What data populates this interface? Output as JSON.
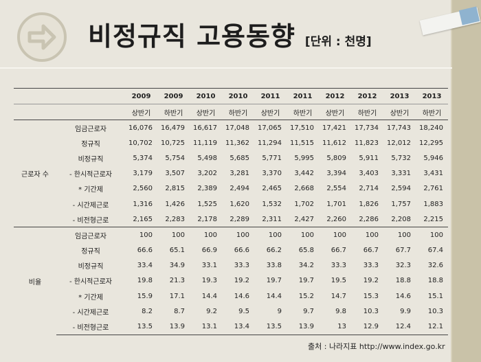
{
  "title": "비정규직 고용동향",
  "unit": "[단위 : 천명]",
  "header": {
    "years": [
      "2009",
      "2009",
      "2010",
      "2010",
      "2011",
      "2011",
      "2012",
      "2012",
      "2013",
      "2013"
    ],
    "halves": [
      "상반기",
      "하반기",
      "상반기",
      "하반기",
      "상반기",
      "하반기",
      "상반기",
      "하반기",
      "상반기",
      "하반기"
    ]
  },
  "groups": [
    {
      "label": "근로자 수",
      "rows": [
        {
          "item": "임금근로자",
          "values": [
            "16,076",
            "16,479",
            "16,617",
            "17,048",
            "17,065",
            "17,510",
            "17,421",
            "17,734",
            "17,743",
            "18,240"
          ]
        },
        {
          "item": "정규직",
          "values": [
            "10,702",
            "10,725",
            "11,119",
            "11,362",
            "11,294",
            "11,515",
            "11,612",
            "11,823",
            "12,012",
            "12,295"
          ]
        },
        {
          "item": "비정규직",
          "values": [
            "5,374",
            "5,754",
            "5,498",
            "5,685",
            "5,771",
            "5,995",
            "5,809",
            "5,911",
            "5,732",
            "5,946"
          ]
        },
        {
          "item": "- 한시적근로자",
          "values": [
            "3,179",
            "3,507",
            "3,202",
            "3,281",
            "3,370",
            "3,442",
            "3,394",
            "3,403",
            "3,331",
            "3,431"
          ]
        },
        {
          "item": "* 기간제",
          "values": [
            "2,560",
            "2,815",
            "2,389",
            "2,494",
            "2,465",
            "2,668",
            "2,554",
            "2,714",
            "2,594",
            "2,761"
          ]
        },
        {
          "item": "- 시간제근로",
          "values": [
            "1,316",
            "1,426",
            "1,525",
            "1,620",
            "1,532",
            "1,702",
            "1,701",
            "1,826",
            "1,757",
            "1,883"
          ]
        },
        {
          "item": "- 비전형근로",
          "values": [
            "2,165",
            "2,283",
            "2,178",
            "2,289",
            "2,311",
            "2,427",
            "2,260",
            "2,286",
            "2,208",
            "2,215"
          ]
        }
      ]
    },
    {
      "label": "비율",
      "rows": [
        {
          "item": "임금근로자",
          "values": [
            "100",
            "100",
            "100",
            "100",
            "100",
            "100",
            "100",
            "100",
            "100",
            "100"
          ]
        },
        {
          "item": "정규직",
          "values": [
            "66.6",
            "65.1",
            "66.9",
            "66.6",
            "66.2",
            "65.8",
            "66.7",
            "66.7",
            "67.7",
            "67.4"
          ]
        },
        {
          "item": "비정규직",
          "values": [
            "33.4",
            "34.9",
            "33.1",
            "33.3",
            "33.8",
            "34.2",
            "33.3",
            "33.3",
            "32.3",
            "32.6"
          ]
        },
        {
          "item": "- 한시적근로자",
          "values": [
            "19.8",
            "21.3",
            "19.3",
            "19.2",
            "19.7",
            "19.7",
            "19.5",
            "19.2",
            "18.8",
            "18.8"
          ]
        },
        {
          "item": "* 기간제",
          "values": [
            "15.9",
            "17.1",
            "14.4",
            "14.6",
            "14.4",
            "15.2",
            "14.7",
            "15.3",
            "14.6",
            "15.1"
          ]
        },
        {
          "item": "- 시간제근로",
          "values": [
            "8.2",
            "8.7",
            "9.2",
            "9.5",
            "9",
            "9.7",
            "9.8",
            "10.3",
            "9.9",
            "10.3"
          ]
        },
        {
          "item": "- 비전형근로",
          "values": [
            "13.5",
            "13.9",
            "13.1",
            "13.4",
            "13.5",
            "13.9",
            "13",
            "12.9",
            "12.4",
            "12.1"
          ]
        }
      ]
    }
  ],
  "source": "출처 : 나라지표  http://www.index.go.kr",
  "icons": {
    "badge": "arrow-right-icon"
  },
  "colors": {
    "background": "#e9e6dd",
    "accent_strip": "#c9c2a8",
    "tape_blue": "#8fb3cf"
  }
}
